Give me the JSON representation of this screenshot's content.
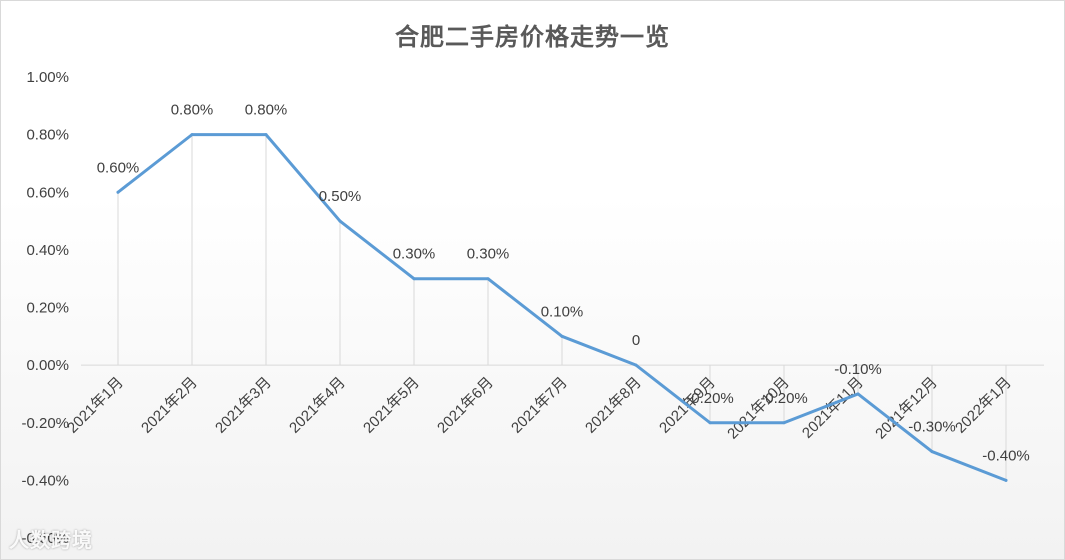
{
  "chart_data": {
    "type": "line",
    "title": "合肥二手房价格走势一览",
    "categories": [
      "2021年1月",
      "2021年2月",
      "2021年3月",
      "2021年4月",
      "2021年5月",
      "2021年6月",
      "2021年7月",
      "2021年8月",
      "2021年9月",
      "2021年10月",
      "2021年11月",
      "2021年12月",
      "2022年1月"
    ],
    "series": [
      {
        "values": [
          0.6,
          0.8,
          0.8,
          0.5,
          0.3,
          0.3,
          0.1,
          0,
          -0.2,
          -0.2,
          -0.1,
          -0.3,
          -0.4
        ],
        "data_labels": [
          "0.60%",
          "0.80%",
          "0.80%",
          "0.50%",
          "0.30%",
          "0.30%",
          "0.10%",
          "0",
          "-0.20%",
          "-0.20%",
          "-0.10%",
          "-0.30%",
          "-0.40%"
        ],
        "color": "#5b9bd5"
      }
    ],
    "ylim": [
      -0.6,
      1.0
    ],
    "yticks": [
      "1.00%",
      "0.80%",
      "0.60%",
      "0.40%",
      "0.20%",
      "0.00%",
      "-0.20%",
      "-0.40%",
      "-0.60%"
    ],
    "ytick_values": [
      1.0,
      0.8,
      0.6,
      0.4,
      0.2,
      0.0,
      -0.2,
      -0.4,
      -0.6
    ],
    "drop_lines": true,
    "grid": false,
    "legend": "none"
  },
  "watermark": "人数跨境"
}
